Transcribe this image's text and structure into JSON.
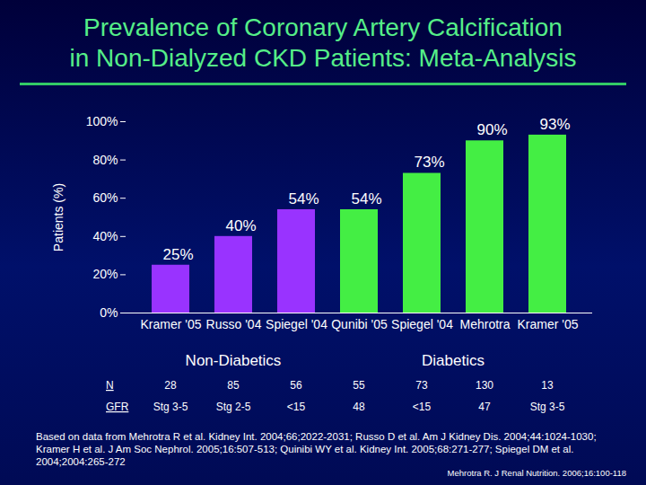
{
  "chart_data": {
    "type": "bar",
    "title": [
      "Prevalence of Coronary Artery Calcification",
      "in Non-Dialyzed CKD Patients: Meta-Analysis"
    ],
    "y_label": "Patients (%)",
    "categories": [
      "Kramer '05",
      "Russo '04",
      "Spiegel '04",
      "Qunibi '05",
      "Spiegel '04",
      "Mehrotra",
      "Kramer '05"
    ],
    "values": [
      25,
      40,
      54,
      54,
      73,
      90,
      93
    ],
    "value_labels": [
      "25%",
      "40%",
      "54%",
      "54%",
      "73%",
      "90%",
      "93%"
    ],
    "colors": [
      "#9933ff",
      "#9933ff",
      "#9933ff",
      "#44ee44",
      "#44ee44",
      "#44ee44",
      "#44ee44"
    ],
    "group_labels": [
      "Non-Diabetics",
      "Non-Diabetics",
      "Non-Diabetics",
      "Diabetics",
      "Diabetics",
      "Diabetics",
      "Diabetics"
    ],
    "ylim": [
      0,
      100
    ],
    "yticks": [
      {
        "value": 0,
        "label": "0%"
      },
      {
        "value": 20,
        "label": "20%"
      },
      {
        "value": 40,
        "label": "40%"
      },
      {
        "value": 60,
        "label": "60%"
      },
      {
        "value": 80,
        "label": "80%"
      },
      {
        "value": 100,
        "label": "100%"
      }
    ],
    "grid": false,
    "data_labels": true,
    "table": {
      "rows": [
        {
          "label": "N",
          "values": [
            "28",
            "85",
            "56",
            "55",
            "73",
            "130",
            "13"
          ]
        },
        {
          "label": "GFR",
          "values": [
            "Stg 3-5",
            "Stg 2-5",
            "<15",
            "48",
            "<15",
            "47",
            "Stg 3-5"
          ]
        }
      ]
    },
    "notes": "Based on data from Mehrotra R et al. Kidney Int. 2004;66;2022-2031; Russo D et al. Am J Kidney Dis. 2004;44:1024-1030; Kramer H et al. J Am Soc Nephrol. 2005;16:507-513; Quinibi WY et al. Kidney Int. 2005;68:271-277; Spiegel DM et al. 2004;2004:265-272",
    "source": "Mehrotra R. J Renal Nutrition. 2006;16:100-118"
  }
}
